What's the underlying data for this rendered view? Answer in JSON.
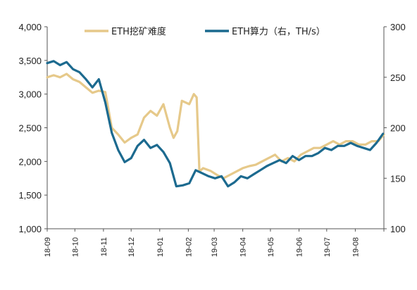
{
  "chart_data": {
    "type": "line",
    "x_ticks": [
      "18-09",
      "18-10",
      "18-11",
      "18-12",
      "19-01",
      "19-02",
      "19-03",
      "19-04",
      "19-05",
      "19-06",
      "19-07",
      "19-08"
    ],
    "y_left": {
      "min": 1000,
      "max": 4000,
      "ticks": [
        "1,000",
        "1,500",
        "2,000",
        "2,500",
        "3,000",
        "3,500",
        "4,000"
      ]
    },
    "y_right": {
      "min": 100,
      "max": 300,
      "ticks": [
        "100",
        "150",
        "200",
        "250",
        "300"
      ]
    },
    "grid": false,
    "legend_placement": "top",
    "series": [
      {
        "name": "ETH挖矿难度",
        "axis": "left",
        "color": "#e6c98a",
        "x": [
          "2018-09-01",
          "2018-09-08",
          "2018-09-15",
          "2018-09-22",
          "2018-09-29",
          "2018-10-06",
          "2018-10-13",
          "2018-10-20",
          "2018-10-27",
          "2018-11-03",
          "2018-11-10",
          "2018-11-17",
          "2018-11-24",
          "2018-12-01",
          "2018-12-08",
          "2018-12-15",
          "2018-12-22",
          "2018-12-29",
          "2019-01-05",
          "2019-01-12",
          "2019-01-16",
          "2019-01-20",
          "2019-01-25",
          "2019-02-02",
          "2019-02-07",
          "2019-02-10",
          "2019-02-13",
          "2019-02-17",
          "2019-02-25",
          "2019-03-04",
          "2019-03-11",
          "2019-03-18",
          "2019-03-25",
          "2019-04-01",
          "2019-04-08",
          "2019-04-15",
          "2019-04-22",
          "2019-04-29",
          "2019-05-06",
          "2019-05-13",
          "2019-05-20",
          "2019-05-27",
          "2019-06-03",
          "2019-06-10",
          "2019-06-17",
          "2019-06-24",
          "2019-07-01",
          "2019-07-08",
          "2019-07-15",
          "2019-07-22",
          "2019-07-29",
          "2019-08-05",
          "2019-08-12",
          "2019-08-19",
          "2019-08-26",
          "2019-09-01"
        ],
        "values": [
          3250,
          3280,
          3250,
          3300,
          3220,
          3180,
          3100,
          3020,
          3050,
          3030,
          2500,
          2400,
          2280,
          2350,
          2400,
          2650,
          2750,
          2680,
          2850,
          2500,
          2350,
          2450,
          2900,
          2850,
          3000,
          2950,
          1850,
          1900,
          1860,
          1800,
          1750,
          1800,
          1850,
          1900,
          1930,
          1950,
          2000,
          2050,
          2100,
          2000,
          2050,
          2000,
          2100,
          2150,
          2200,
          2200,
          2250,
          2300,
          2250,
          2300,
          2300,
          2250,
          2250,
          2300,
          2300,
          2400
        ]
      },
      {
        "name": "ETH算力（右，TH/s）",
        "axis": "right",
        "color": "#1c6a8f",
        "x": [
          "2018-09-01",
          "2018-09-08",
          "2018-09-15",
          "2018-09-22",
          "2018-09-29",
          "2018-10-06",
          "2018-10-13",
          "2018-10-20",
          "2018-10-27",
          "2018-11-03",
          "2018-11-10",
          "2018-11-17",
          "2018-11-24",
          "2018-12-01",
          "2018-12-08",
          "2018-12-15",
          "2018-12-22",
          "2018-12-29",
          "2019-01-05",
          "2019-01-12",
          "2019-01-19",
          "2019-01-26",
          "2019-02-02",
          "2019-02-09",
          "2019-02-16",
          "2019-02-23",
          "2019-03-02",
          "2019-03-09",
          "2019-03-16",
          "2019-03-23",
          "2019-03-30",
          "2019-04-06",
          "2019-04-13",
          "2019-04-20",
          "2019-04-27",
          "2019-05-04",
          "2019-05-11",
          "2019-05-18",
          "2019-05-25",
          "2019-06-01",
          "2019-06-08",
          "2019-06-15",
          "2019-06-22",
          "2019-06-29",
          "2019-07-06",
          "2019-07-13",
          "2019-07-20",
          "2019-07-27",
          "2019-08-03",
          "2019-08-10",
          "2019-08-17",
          "2019-08-24",
          "2019-08-31"
        ],
        "values": [
          264,
          266,
          262,
          265,
          258,
          255,
          248,
          240,
          248,
          225,
          195,
          178,
          166,
          170,
          182,
          188,
          180,
          183,
          176,
          165,
          142,
          143,
          145,
          158,
          155,
          152,
          150,
          152,
          142,
          146,
          152,
          150,
          154,
          158,
          162,
          165,
          168,
          165,
          172,
          168,
          172,
          172,
          175,
          180,
          178,
          182,
          182,
          185,
          182,
          180,
          178,
          185,
          194
        ]
      }
    ]
  }
}
